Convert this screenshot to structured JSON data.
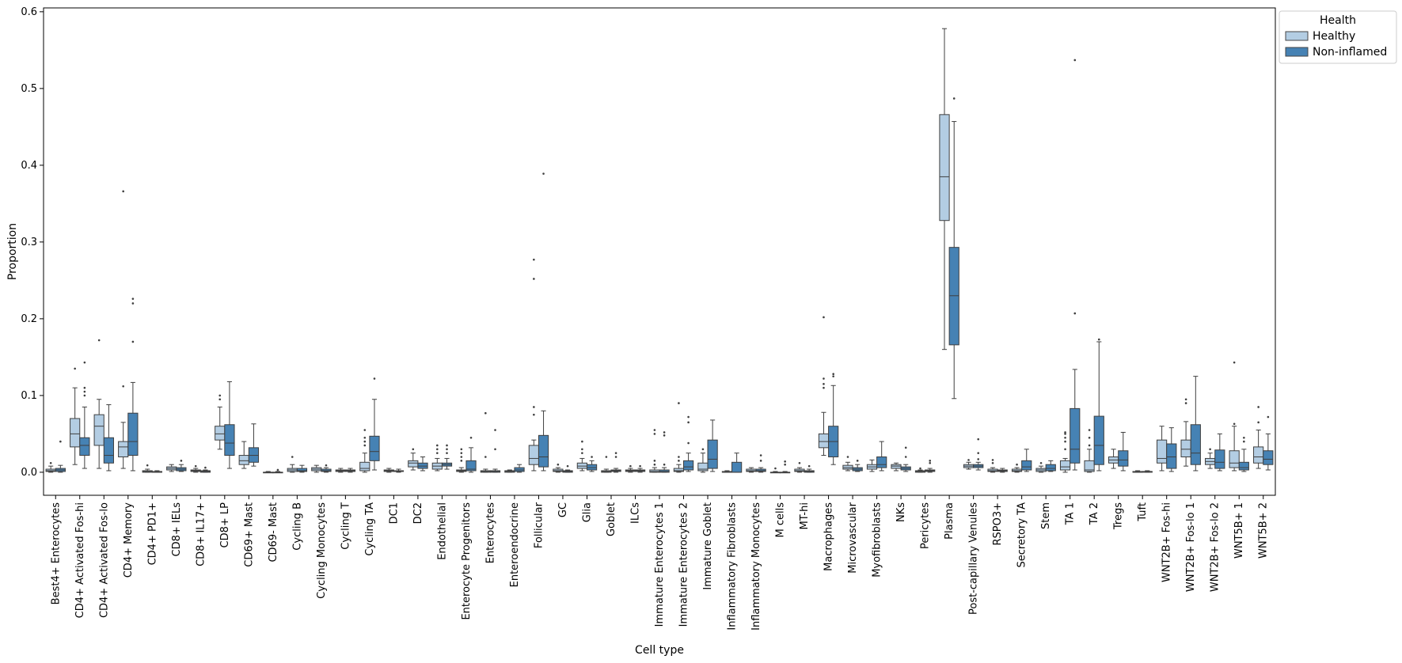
{
  "chart_data": {
    "type": "box",
    "xlabel": "Cell type",
    "ylabel": "Proportion",
    "ylim": [
      -0.03,
      0.605
    ],
    "yticks": [
      0.0,
      0.1,
      0.2,
      0.3,
      0.4,
      0.5,
      0.6
    ],
    "ytick_labels": [
      "0.0",
      "0.1",
      "0.2",
      "0.3",
      "0.4",
      "0.5",
      "0.6"
    ],
    "grid": false,
    "legend": {
      "title": "Health",
      "placement": "outside-top-right",
      "entries": [
        "Healthy",
        "Non-inflamed"
      ]
    },
    "series": [
      {
        "name": "Healthy",
        "color": "#b3cde3"
      },
      {
        "name": "Non-inflamed",
        "color": "#4682b4"
      }
    ],
    "categories": [
      "Best4+ Enterocytes",
      "CD4+ Activated Fos-hi",
      "CD4+ Activated Fos-lo",
      "CD4+ Memory",
      "CD4+ PD1+",
      "CD8+ IELs",
      "CD8+ IL17+",
      "CD8+ LP",
      "CD69+ Mast",
      "CD69- Mast",
      "Cycling B",
      "Cycling Monocytes",
      "Cycling T",
      "Cycling TA",
      "DC1",
      "DC2",
      "Endothelial",
      "Enterocyte Progenitors",
      "Enterocytes",
      "Enteroendocrine",
      "Follicular",
      "GC",
      "Glia",
      "Goblet",
      "ILCs",
      "Immature Enterocytes 1",
      "Immature Enterocytes 2",
      "Immature Goblet",
      "Inflammatory Fibroblasts",
      "Inflammatory Monocytes",
      "M cells",
      "MT-hi",
      "Macrophages",
      "Microvascular",
      "Myofibroblasts",
      "NKs",
      "Pericytes",
      "Plasma",
      "Post-capillary Venules",
      "RSPO3+",
      "Secretory TA",
      "Stem",
      "TA 1",
      "TA 2",
      "Tregs",
      "Tuft",
      "WNT2B+ Fos-hi",
      "WNT2B+ Fos-lo 1",
      "WNT2B+ Fos-lo 2",
      "WNT5B+ 1",
      "WNT5B+ 2"
    ],
    "boxes": [
      [
        [
          0,
          0.001,
          0.002,
          0.004,
          0.008,
          [
            0.012
          ]
        ],
        [
          0,
          0.001,
          0.003,
          0.005,
          0.009,
          [
            0.04
          ]
        ]
      ],
      [
        [
          0.01,
          0.033,
          0.05,
          0.07,
          0.11,
          [
            0.135
          ]
        ],
        [
          0.005,
          0.022,
          0.035,
          0.045,
          0.085,
          [
            0.1,
            0.105,
            0.11,
            0.143
          ]
        ]
      ],
      [
        [
          0.005,
          0.035,
          0.06,
          0.075,
          0.095,
          [
            0.172
          ]
        ],
        [
          0.002,
          0.012,
          0.022,
          0.045,
          0.088,
          []
        ]
      ],
      [
        [
          0.005,
          0.02,
          0.033,
          0.04,
          0.065,
          [
            0.112,
            0.366
          ]
        ],
        [
          0.002,
          0.022,
          0.04,
          0.077,
          0.117,
          [
            0.17,
            0.22,
            0.226
          ]
        ]
      ],
      [
        [
          0,
          0,
          0.001,
          0.002,
          0.004,
          [
            0.009
          ]
        ],
        [
          0,
          0,
          0,
          0.001,
          0.002,
          []
        ]
      ],
      [
        [
          0.001,
          0.003,
          0.005,
          0.007,
          0.01,
          []
        ],
        [
          0.001,
          0.002,
          0.004,
          0.006,
          0.01,
          [
            0.015
          ]
        ]
      ],
      [
        [
          0,
          0.001,
          0.002,
          0.003,
          0.005,
          [
            0.008
          ]
        ],
        [
          0,
          0,
          0.001,
          0.002,
          0.003,
          [
            0.006
          ]
        ]
      ],
      [
        [
          0.03,
          0.042,
          0.05,
          0.06,
          0.085,
          [
            0.095,
            0.1
          ]
        ],
        [
          0.005,
          0.022,
          0.038,
          0.062,
          0.118,
          []
        ]
      ],
      [
        [
          0.005,
          0.01,
          0.015,
          0.022,
          0.04,
          []
        ],
        [
          0.008,
          0.013,
          0.022,
          0.032,
          0.063,
          []
        ]
      ],
      [
        [
          0,
          0,
          0,
          0,
          0.001,
          []
        ],
        [
          0,
          0,
          0,
          0,
          0.001,
          [
            0.003
          ]
        ]
      ],
      [
        [
          0,
          0.001,
          0.003,
          0.005,
          0.01,
          [
            0.02
          ]
        ],
        [
          0,
          0.001,
          0.002,
          0.005,
          0.009,
          []
        ]
      ],
      [
        [
          0,
          0.002,
          0.004,
          0.006,
          0.009,
          []
        ],
        [
          0,
          0.001,
          0.002,
          0.004,
          0.006,
          [
            0.009
          ]
        ]
      ],
      [
        [
          0,
          0.001,
          0.002,
          0.003,
          0.005,
          []
        ],
        [
          0,
          0.001,
          0.002,
          0.003,
          0.005,
          []
        ]
      ],
      [
        [
          0,
          0.002,
          0.005,
          0.013,
          0.025,
          [
            0.035,
            0.04,
            0.045,
            0.055
          ]
        ],
        [
          0.003,
          0.015,
          0.027,
          0.047,
          0.095,
          [
            0.122
          ]
        ]
      ],
      [
        [
          0,
          0.001,
          0.002,
          0.003,
          0.005,
          []
        ],
        [
          0,
          0.001,
          0.001,
          0.002,
          0.004,
          []
        ]
      ],
      [
        [
          0.003,
          0.007,
          0.012,
          0.015,
          0.025,
          [
            0.03
          ]
        ],
        [
          0.002,
          0.005,
          0.008,
          0.012,
          0.02,
          []
        ]
      ],
      [
        [
          0.002,
          0.004,
          0.008,
          0.012,
          0.018,
          [
            0.025,
            0.03,
            0.035
          ]
        ],
        [
          0.004,
          0.008,
          0.01,
          0.012,
          0.018,
          [
            0.025,
            0.03,
            0.035
          ]
        ]
      ],
      [
        [
          0,
          0.001,
          0.002,
          0.003,
          0.006,
          [
            0.015,
            0.02,
            0.025,
            0.03
          ]
        ],
        [
          0,
          0.002,
          0.004,
          0.015,
          0.032,
          [
            0.045
          ]
        ]
      ],
      [
        [
          0,
          0,
          0.001,
          0.002,
          0.004,
          [
            0.02,
            0.077
          ]
        ],
        [
          0,
          0,
          0.001,
          0.002,
          0.004,
          [
            0.03,
            0.055
          ]
        ]
      ],
      [
        [
          0,
          0,
          0.001,
          0.002,
          0.003,
          []
        ],
        [
          0,
          0.001,
          0.003,
          0.006,
          0.01,
          []
        ]
      ],
      [
        [
          0.002,
          0.01,
          0.018,
          0.035,
          0.042,
          [
            0.075,
            0.085,
            0.252,
            0.277
          ]
        ],
        [
          0.002,
          0.007,
          0.02,
          0.048,
          0.08,
          [
            0.389
          ]
        ]
      ],
      [
        [
          0,
          0.001,
          0.002,
          0.004,
          0.006,
          [
            0.01
          ]
        ],
        [
          0,
          0,
          0.001,
          0.002,
          0.003,
          [
            0.008
          ]
        ]
      ],
      [
        [
          0.002,
          0.005,
          0.008,
          0.012,
          0.018,
          [
            0.025,
            0.03,
            0.04
          ]
        ],
        [
          0.001,
          0.003,
          0.006,
          0.01,
          0.015,
          [
            0.02
          ]
        ]
      ],
      [
        [
          0,
          0,
          0.001,
          0.002,
          0.004,
          [
            0.02
          ]
        ],
        [
          0,
          0.001,
          0.002,
          0.003,
          0.005,
          [
            0.02,
            0.025
          ]
        ]
      ],
      [
        [
          0,
          0.001,
          0.002,
          0.003,
          0.005,
          [
            0.008
          ]
        ],
        [
          0,
          0.001,
          0.002,
          0.003,
          0.005,
          [
            0.008
          ]
        ]
      ],
      [
        [
          0,
          0,
          0.001,
          0.003,
          0.006,
          [
            0.01,
            0.015,
            0.05,
            0.055
          ]
        ],
        [
          0,
          0,
          0.001,
          0.003,
          0.006,
          [
            0.01,
            0.048,
            0.052
          ]
        ]
      ],
      [
        [
          0,
          0.001,
          0.002,
          0.005,
          0.01,
          [
            0.015,
            0.02,
            0.09
          ]
        ],
        [
          0.001,
          0.003,
          0.007,
          0.015,
          0.025,
          [
            0.038,
            0.065,
            0.072
          ]
        ]
      ],
      [
        [
          0,
          0.002,
          0.004,
          0.012,
          0.025,
          [
            0.03
          ]
        ],
        [
          0.001,
          0.005,
          0.017,
          0.042,
          0.068,
          []
        ]
      ],
      [
        [
          0,
          0,
          0,
          0.001,
          0.002,
          []
        ],
        [
          0,
          0,
          0,
          0.013,
          0.025,
          []
        ]
      ],
      [
        [
          0,
          0.001,
          0.002,
          0.004,
          0.006,
          []
        ],
        [
          0,
          0.001,
          0.002,
          0.004,
          0.006,
          [
            0.015,
            0.022
          ]
        ]
      ],
      [
        [
          0,
          0,
          0,
          0,
          0.001,
          [
            0.005
          ]
        ],
        [
          0,
          0,
          0,
          0,
          0.001,
          [
            0.01,
            0.014
          ]
        ]
      ],
      [
        [
          0,
          0.001,
          0.002,
          0.004,
          0.006,
          [
            0.012
          ]
        ],
        [
          0,
          0,
          0.001,
          0.002,
          0.004,
          [
            0.008
          ]
        ]
      ],
      [
        [
          0.022,
          0.032,
          0.04,
          0.05,
          0.078,
          [
            0.11,
            0.115,
            0.122,
            0.202
          ]
        ],
        [
          0.01,
          0.02,
          0.04,
          0.06,
          0.113,
          [
            0.125,
            0.128
          ]
        ]
      ],
      [
        [
          0.002,
          0.004,
          0.006,
          0.009,
          0.013,
          [
            0.02
          ]
        ],
        [
          0.001,
          0.002,
          0.004,
          0.006,
          0.01,
          [
            0.015
          ]
        ]
      ],
      [
        [
          0.001,
          0.004,
          0.007,
          0.01,
          0.016,
          []
        ],
        [
          0.002,
          0.006,
          0.01,
          0.02,
          0.04,
          []
        ]
      ],
      [
        [
          0.002,
          0.005,
          0.008,
          0.01,
          0.012,
          []
        ],
        [
          0.001,
          0.003,
          0.005,
          0.007,
          0.01,
          [
            0.02,
            0.032
          ]
        ]
      ],
      [
        [
          0,
          0,
          0.001,
          0.002,
          0.003,
          [
            0.005
          ]
        ],
        [
          0,
          0.001,
          0.002,
          0.003,
          0.005,
          [
            0.012,
            0.015
          ]
        ]
      ],
      [
        [
          0.16,
          0.328,
          0.385,
          0.466,
          0.578,
          []
        ],
        [
          0.096,
          0.166,
          0.23,
          0.293,
          0.457,
          [
            0.487
          ]
        ]
      ],
      [
        [
          0.004,
          0.006,
          0.008,
          0.01,
          0.013,
          [
            0.016
          ]
        ],
        [
          0.003,
          0.006,
          0.008,
          0.01,
          0.013,
          [
            0.017,
            0.025,
            0.043
          ]
        ]
      ],
      [
        [
          0,
          0.001,
          0.002,
          0.004,
          0.006,
          [
            0.012,
            0.016
          ]
        ],
        [
          0,
          0.001,
          0.002,
          0.003,
          0.005,
          []
        ]
      ],
      [
        [
          0,
          0.001,
          0.002,
          0.004,
          0.006,
          [
            0.01
          ]
        ],
        [
          0.001,
          0.003,
          0.007,
          0.015,
          0.03,
          []
        ]
      ],
      [
        [
          0,
          0.001,
          0.003,
          0.005,
          0.008,
          [
            0.012
          ]
        ],
        [
          0.001,
          0.002,
          0.005,
          0.01,
          0.015,
          []
        ]
      ],
      [
        [
          0,
          0.003,
          0.007,
          0.015,
          0.018,
          [
            0.03,
            0.04,
            0.045,
            0.05,
            0.052
          ]
        ],
        [
          0.003,
          0.012,
          0.03,
          0.083,
          0.134,
          [
            0.207,
            0.537
          ]
        ]
      ],
      [
        [
          0,
          0.001,
          0.003,
          0.015,
          0.03,
          [
            0.035,
            0.045,
            0.055
          ]
        ],
        [
          0.002,
          0.01,
          0.035,
          0.073,
          0.17,
          [
            0.173
          ]
        ]
      ],
      [
        [
          0.005,
          0.012,
          0.016,
          0.02,
          0.03,
          []
        ],
        [
          0.002,
          0.008,
          0.016,
          0.028,
          0.052,
          []
        ]
      ],
      [
        [
          0,
          0,
          0,
          0.001,
          0.002,
          []
        ],
        [
          0,
          0,
          0.001,
          0.001,
          0.002,
          []
        ]
      ],
      [
        [
          0.002,
          0.012,
          0.018,
          0.042,
          0.06,
          []
        ],
        [
          0.001,
          0.005,
          0.02,
          0.037,
          0.058,
          []
        ]
      ],
      [
        [
          0.008,
          0.02,
          0.03,
          0.042,
          0.066,
          [
            0.09,
            0.095
          ]
        ],
        [
          0.002,
          0.01,
          0.025,
          0.062,
          0.125,
          []
        ]
      ],
      [
        [
          0.005,
          0.01,
          0.014,
          0.018,
          0.025,
          [
            0.03
          ]
        ],
        [
          0.002,
          0.005,
          0.013,
          0.029,
          0.05,
          []
        ]
      ],
      [
        [
          0.002,
          0.006,
          0.012,
          0.028,
          0.06,
          [
            0.063,
            0.143
          ]
        ],
        [
          0.001,
          0.003,
          0.006,
          0.013,
          0.03,
          [
            0.04,
            0.045
          ]
        ]
      ],
      [
        [
          0.005,
          0.012,
          0.02,
          0.033,
          0.055,
          [
            0.065,
            0.085
          ]
        ],
        [
          0.003,
          0.01,
          0.017,
          0.028,
          0.05,
          [
            0.072
          ]
        ]
      ]
    ]
  }
}
